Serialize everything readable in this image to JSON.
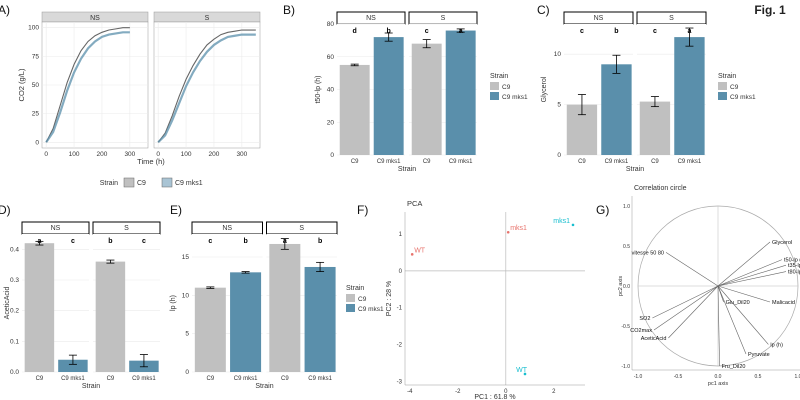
{
  "figure_label": "Fig. 1",
  "colors": {
    "c9": "#c0c0c0",
    "mks1": "#5a8fab",
    "wt_point": "#e8736c",
    "mks1_point": "#17becf",
    "strip": "#d9d9d9",
    "grid": "#ebebeb"
  },
  "chart_data": [
    {
      "panel": "A)",
      "type": "line",
      "facets": [
        "NS",
        "S"
      ],
      "xlabel": "Time (h)",
      "ylabel": "CO2 (g/L)",
      "xlim": [
        0,
        350
      ],
      "ylim": [
        0,
        100
      ],
      "xticks": [
        "0",
        "100",
        "200",
        "300"
      ],
      "yticks": [
        "0",
        "25",
        "50",
        "75",
        "100"
      ],
      "legend_title": "Strain",
      "legend": [
        "C9",
        "C9 mks1"
      ],
      "series": [
        {
          "name": "C9",
          "facet": "NS",
          "x": [
            0,
            25,
            50,
            75,
            100,
            125,
            150,
            175,
            200,
            225,
            250,
            275,
            300
          ],
          "values": [
            0,
            12,
            32,
            52,
            68,
            80,
            88,
            93,
            96,
            98,
            99,
            100,
            100
          ]
        },
        {
          "name": "C9 mks1",
          "facet": "NS",
          "x": [
            0,
            25,
            50,
            75,
            100,
            125,
            150,
            175,
            200,
            225,
            250,
            275,
            300
          ],
          "values": [
            0,
            9,
            26,
            45,
            61,
            73,
            82,
            88,
            92,
            94,
            95,
            96,
            96
          ]
        },
        {
          "name": "C9",
          "facet": "S",
          "x": [
            0,
            25,
            50,
            75,
            100,
            125,
            150,
            175,
            200,
            225,
            250,
            275,
            300,
            325,
            350
          ],
          "values": [
            0,
            8,
            23,
            40,
            55,
            67,
            77,
            85,
            90,
            94,
            96,
            97,
            98,
            98,
            98
          ]
        },
        {
          "name": "C9 mks1",
          "facet": "S",
          "x": [
            0,
            25,
            50,
            75,
            100,
            125,
            150,
            175,
            200,
            225,
            250,
            275,
            300,
            325,
            350
          ],
          "values": [
            0,
            6,
            19,
            34,
            49,
            61,
            71,
            79,
            85,
            89,
            92,
            93,
            94,
            94,
            94
          ]
        }
      ]
    },
    {
      "panel": "B)",
      "type": "bar",
      "facets": [
        "NS",
        "S"
      ],
      "categories": [
        "C9",
        "C9 mks1"
      ],
      "xlabel": "Strain",
      "ylabel": "t50-lp (h)",
      "ylim": [
        0,
        80
      ],
      "yticks": [
        "0",
        "20",
        "40",
        "60",
        "80"
      ],
      "legend_title": "Strain",
      "legend": [
        "C9",
        "C9 mks1"
      ],
      "bars": [
        {
          "facet": "NS",
          "strain": "C9",
          "value": 55,
          "err": 0.5,
          "letter": "d"
        },
        {
          "facet": "NS",
          "strain": "C9 mks1",
          "value": 72,
          "err": 2.5,
          "letter": "b"
        },
        {
          "facet": "S",
          "strain": "C9",
          "value": 68,
          "err": 2.5,
          "letter": "c"
        },
        {
          "facet": "S",
          "strain": "C9 mks1",
          "value": 76,
          "err": 1,
          "letter": "a"
        }
      ]
    },
    {
      "panel": "C)",
      "type": "bar",
      "facets": [
        "NS",
        "S"
      ],
      "categories": [
        "C9",
        "C9 mks1"
      ],
      "xlabel": "Strain",
      "ylabel": "Glycerol",
      "ylim": [
        0,
        13
      ],
      "yticks": [
        "0",
        "5",
        "10"
      ],
      "legend_title": "Strain",
      "legend": [
        "C9",
        "C9 mks1"
      ],
      "bars": [
        {
          "facet": "NS",
          "strain": "C9",
          "value": 5,
          "err": 1,
          "letter": "c"
        },
        {
          "facet": "NS",
          "strain": "C9 mks1",
          "value": 9,
          "err": 0.9,
          "letter": "b"
        },
        {
          "facet": "S",
          "strain": "C9",
          "value": 5.3,
          "err": 0.5,
          "letter": "c"
        },
        {
          "facet": "S",
          "strain": "C9 mks1",
          "value": 11.7,
          "err": 0.9,
          "letter": "a"
        }
      ]
    },
    {
      "panel": "D)",
      "type": "bar",
      "facets": [
        "NS",
        "S"
      ],
      "categories": [
        "C9",
        "C9 mks1"
      ],
      "xlabel": "Strain",
      "ylabel": "AceticAcid",
      "ylim": [
        0,
        0.45
      ],
      "yticks": [
        "0.0",
        "0.1",
        "0.2",
        "0.3",
        "0.4"
      ],
      "bars": [
        {
          "facet": "NS",
          "strain": "C9",
          "value": 0.42,
          "err": 0.006,
          "letter": "a"
        },
        {
          "facet": "NS",
          "strain": "C9 mks1",
          "value": 0.04,
          "err": 0.015,
          "letter": "c"
        },
        {
          "facet": "S",
          "strain": "C9",
          "value": 0.36,
          "err": 0.005,
          "letter": "b"
        },
        {
          "facet": "S",
          "strain": "C9 mks1",
          "value": 0.037,
          "err": 0.02,
          "letter": "c"
        }
      ]
    },
    {
      "panel": "E)",
      "type": "bar",
      "facets": [
        "NS",
        "S"
      ],
      "categories": [
        "C9",
        "C9 mks1"
      ],
      "xlabel": "Strain",
      "ylabel": "lp (h)",
      "ylim": [
        0,
        18
      ],
      "yticks": [
        "0",
        "5",
        "10",
        "15"
      ],
      "legend_title": "Strain",
      "legend": [
        "C9",
        "C9 mks1"
      ],
      "bars": [
        {
          "facet": "NS",
          "strain": "C9",
          "value": 11,
          "err": 0.1,
          "letter": "c"
        },
        {
          "facet": "NS",
          "strain": "C9 mks1",
          "value": 13,
          "err": 0.1,
          "letter": "b"
        },
        {
          "facet": "S",
          "strain": "C9",
          "value": 16.7,
          "err": 0.7,
          "letter": "a"
        },
        {
          "facet": "S",
          "strain": "C9 mks1",
          "value": 13.7,
          "err": 0.6,
          "letter": "b"
        }
      ]
    },
    {
      "panel": "F)",
      "type": "scatter",
      "title": "PCA",
      "xlabel": "PC1 : 61.8 %",
      "ylabel": "PC2 : 28 %",
      "xlim": [
        -4.2,
        3.3
      ],
      "ylim": [
        -3.1,
        1.6
      ],
      "xticks": [
        -4,
        -2,
        0,
        2
      ],
      "yticks": [
        -3,
        -2,
        -1,
        0,
        1
      ],
      "points": [
        {
          "label": "WT",
          "x": -3.9,
          "y": 0.45,
          "group": "wt"
        },
        {
          "label": "mks1",
          "x": 0.1,
          "y": 1.05,
          "group": "wt"
        },
        {
          "label": "mks1",
          "x": 2.8,
          "y": 1.25,
          "group": "mks1"
        },
        {
          "label": "WT",
          "x": 0.8,
          "y": -2.8,
          "group": "mks1"
        }
      ]
    },
    {
      "panel": "G)",
      "type": "scatter",
      "title": "Correlation circle",
      "xlabel": "pc1 axis",
      "ylabel": "pc2 axis",
      "xlim": [
        -1.2,
        1.2
      ],
      "ylim": [
        -1.2,
        1.2
      ],
      "xticks": [
        "-1.0",
        "-0.5",
        "0.0",
        "0.5",
        "1.0"
      ],
      "yticks": [
        "-1.0",
        "-0.5",
        "0.0",
        "0.5",
        "1.0"
      ],
      "vectors": [
        {
          "label": "Glycerol",
          "x": 0.65,
          "y": 0.55
        },
        {
          "label": "t50-lp (h)",
          "x": 0.8,
          "y": 0.33
        },
        {
          "label": "t35-lp (h)",
          "x": 0.85,
          "y": 0.26
        },
        {
          "label": "t80-lp (h)",
          "x": 0.85,
          "y": 0.18
        },
        {
          "label": "vitesse 50 80",
          "x": -0.65,
          "y": 0.42
        },
        {
          "label": "Malicacid",
          "x": 0.65,
          "y": -0.2
        },
        {
          "label": "Glu_Dil20",
          "x": 0.07,
          "y": -0.2
        },
        {
          "label": "SO2",
          "x": -0.82,
          "y": -0.4
        },
        {
          "label": "CO2max",
          "x": -0.8,
          "y": -0.55
        },
        {
          "label": "AceticAcid",
          "x": -0.62,
          "y": -0.65
        },
        {
          "label": "lp (h)",
          "x": 0.63,
          "y": -0.73
        },
        {
          "label": "Pyruvate",
          "x": 0.35,
          "y": -0.85
        },
        {
          "label": "Fru_Dil20",
          "x": 0.02,
          "y": -1.0
        }
      ]
    }
  ]
}
